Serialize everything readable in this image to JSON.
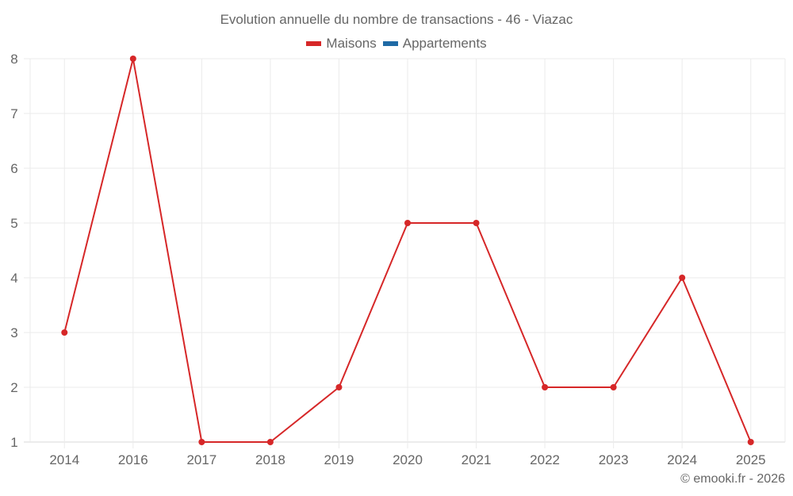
{
  "chart_data": {
    "type": "line",
    "title": "Evolution annuelle du nombre de transactions - 46 - Viazac",
    "xlabel": "",
    "ylabel": "",
    "categories": [
      "2014",
      "2016",
      "2017",
      "2018",
      "2019",
      "2020",
      "2021",
      "2022",
      "2023",
      "2024",
      "2025"
    ],
    "series": [
      {
        "name": "Maisons",
        "color": "#d62728",
        "values": [
          3,
          8,
          1,
          1,
          2,
          5,
          5,
          2,
          2,
          4,
          1
        ]
      },
      {
        "name": "Appartements",
        "color": "#1f6aa5",
        "values": []
      }
    ],
    "ylim": [
      1,
      8
    ],
    "yticks": [
      1,
      2,
      3,
      4,
      5,
      6,
      7,
      8
    ],
    "grid": true,
    "legend_position": "top"
  },
  "legend": [
    {
      "label": "Maisons",
      "color": "#d62728"
    },
    {
      "label": "Appartements",
      "color": "#1f6aa5"
    }
  ],
  "credit": "© emooki.fr - 2026"
}
